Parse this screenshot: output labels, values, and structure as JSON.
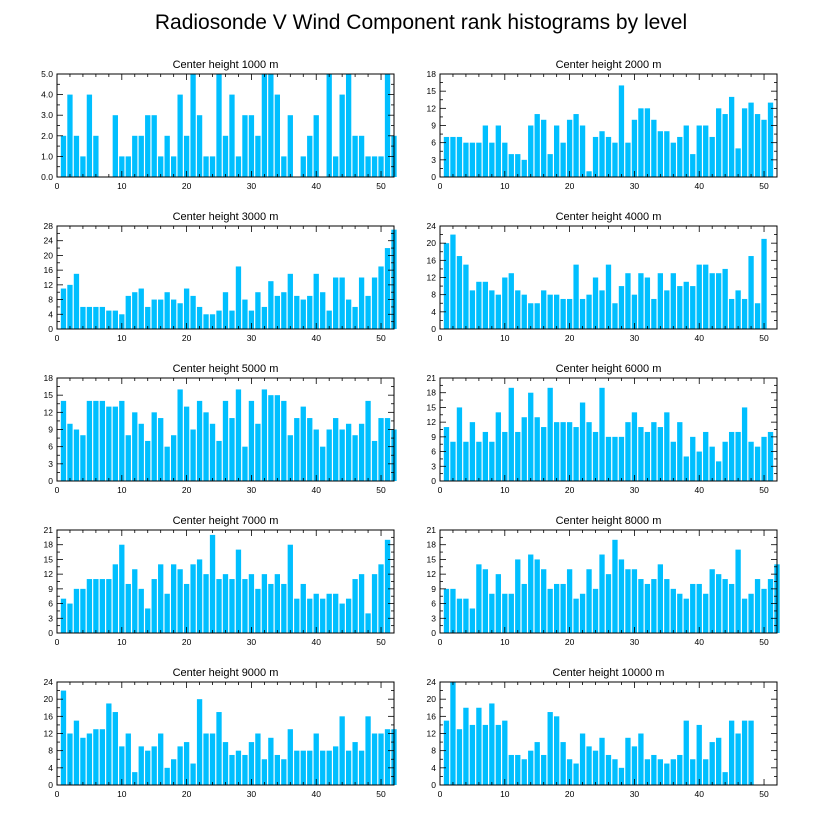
{
  "figure": {
    "title": "Radiosonde V Wind Component rank histograms by level"
  },
  "style": {
    "bar_color": "#00bfff",
    "axis_color": "#000000",
    "background": "#ffffff"
  },
  "chart_data": [
    {
      "type": "bar",
      "title": "Center height 1000 m",
      "xlim": [
        0,
        52
      ],
      "ylim": [
        0,
        5
      ],
      "x_ticks": [
        0,
        10,
        20,
        30,
        40,
        50
      ],
      "y_ticks": [
        0.0,
        1.0,
        2.0,
        3.0,
        4.0,
        5.0
      ],
      "y_tick_labels": [
        "0.0",
        "1.0",
        "2.0",
        "3.0",
        "4.0",
        "5.0"
      ],
      "values": [
        2,
        4,
        2,
        1,
        4,
        2,
        0,
        0,
        3,
        1,
        1,
        2,
        2,
        3,
        3,
        1,
        2,
        1,
        4,
        2,
        5,
        3,
        1,
        1,
        5,
        2,
        4,
        1,
        3,
        3,
        2,
        5,
        5,
        4,
        1,
        3,
        0,
        1,
        2,
        3,
        0,
        5,
        1,
        4,
        5,
        2,
        2,
        1,
        1,
        1,
        5,
        2
      ]
    },
    {
      "type": "bar",
      "title": "Center height 2000 m",
      "xlim": [
        0,
        52
      ],
      "ylim": [
        0,
        18
      ],
      "x_ticks": [
        0,
        10,
        20,
        30,
        40,
        50
      ],
      "y_ticks": [
        0,
        3,
        6,
        9,
        12,
        15,
        18
      ],
      "y_tick_labels": [
        "0",
        "3",
        "6",
        "9",
        "12",
        "15",
        "18"
      ],
      "values": [
        7,
        7,
        7,
        6,
        6,
        6,
        9,
        6,
        9,
        6,
        4,
        4,
        3,
        9,
        11,
        10,
        4,
        9,
        6,
        10,
        11,
        9,
        1,
        7,
        8,
        7,
        6,
        16,
        6,
        10,
        12,
        12,
        10,
        8,
        8,
        6,
        7,
        9,
        4,
        9,
        9,
        7,
        12,
        11,
        14,
        5,
        12,
        13,
        11,
        10,
        13
      ]
    },
    {
      "type": "bar",
      "title": "Center height 3000 m",
      "xlim": [
        0,
        52
      ],
      "ylim": [
        0,
        28
      ],
      "x_ticks": [
        0,
        10,
        20,
        30,
        40,
        50
      ],
      "y_ticks": [
        0,
        4,
        8,
        12,
        16,
        20,
        24,
        28
      ],
      "y_tick_labels": [
        "0",
        "4",
        "8",
        "12",
        "16",
        "20",
        "24",
        "28"
      ],
      "values": [
        11,
        12,
        15,
        6,
        6,
        6,
        6,
        5,
        5,
        4,
        9,
        10,
        11,
        6,
        8,
        8,
        10,
        8,
        7,
        11,
        9,
        6,
        4,
        4,
        5,
        10,
        5,
        17,
        8,
        5,
        10,
        6,
        13,
        9,
        10,
        15,
        9,
        8,
        9,
        15,
        10,
        5,
        14,
        14,
        8,
        6,
        14,
        9,
        14,
        17,
        22,
        27
      ]
    },
    {
      "type": "bar",
      "title": "Center height 4000 m",
      "xlim": [
        0,
        52
      ],
      "ylim": [
        0,
        24
      ],
      "x_ticks": [
        0,
        10,
        20,
        30,
        40,
        50
      ],
      "y_ticks": [
        0,
        4,
        8,
        12,
        16,
        20,
        24
      ],
      "y_tick_labels": [
        "0",
        "4",
        "8",
        "12",
        "16",
        "20",
        "24"
      ],
      "values": [
        20,
        22,
        17,
        15,
        9,
        11,
        11,
        9,
        8,
        12,
        13,
        9,
        8,
        6,
        6,
        9,
        8,
        8,
        7,
        7,
        15,
        7,
        8,
        12,
        9,
        15,
        6,
        10,
        13,
        8,
        13,
        12,
        7,
        13,
        9,
        13,
        10,
        11,
        10,
        15,
        15,
        13,
        13,
        14,
        7,
        9,
        7,
        17,
        6,
        21
      ]
    },
    {
      "type": "bar",
      "title": "Center height 5000 m",
      "xlim": [
        0,
        52
      ],
      "ylim": [
        0,
        18
      ],
      "x_ticks": [
        0,
        10,
        20,
        30,
        40,
        50
      ],
      "y_ticks": [
        0,
        3,
        6,
        9,
        12,
        15,
        18
      ],
      "y_tick_labels": [
        "0",
        "3",
        "6",
        "9",
        "12",
        "15",
        "18"
      ],
      "values": [
        14,
        10,
        9,
        8,
        14,
        14,
        14,
        13,
        13,
        14,
        8,
        12,
        10,
        7,
        12,
        11,
        6,
        8,
        16,
        13,
        9,
        14,
        12,
        10,
        7,
        14,
        11,
        16,
        6,
        14,
        10,
        16,
        15,
        15,
        14,
        8,
        11,
        13,
        11,
        9,
        6,
        9,
        11,
        9,
        10,
        8,
        10,
        14,
        7,
        11,
        11,
        9
      ]
    },
    {
      "type": "bar",
      "title": "Center height 6000 m",
      "xlim": [
        0,
        52
      ],
      "ylim": [
        0,
        21
      ],
      "x_ticks": [
        0,
        10,
        20,
        30,
        40,
        50
      ],
      "y_ticks": [
        0,
        3,
        6,
        9,
        12,
        15,
        18,
        21
      ],
      "y_tick_labels": [
        "0",
        "3",
        "6",
        "9",
        "12",
        "15",
        "18",
        "21"
      ],
      "values": [
        11,
        8,
        15,
        8,
        12,
        8,
        10,
        8,
        14,
        10,
        19,
        10,
        13,
        18,
        13,
        11,
        19,
        12,
        12,
        12,
        11,
        16,
        12,
        10,
        19,
        9,
        9,
        9,
        12,
        14,
        11,
        10,
        12,
        11,
        14,
        8,
        12,
        5,
        9,
        6,
        10,
        7,
        4,
        8,
        10,
        10,
        15,
        8,
        7,
        9,
        10
      ]
    },
    {
      "type": "bar",
      "title": "Center height 7000 m",
      "xlim": [
        0,
        52
      ],
      "ylim": [
        0,
        21
      ],
      "x_ticks": [
        0,
        10,
        20,
        30,
        40,
        50
      ],
      "y_ticks": [
        0,
        3,
        6,
        9,
        12,
        15,
        18,
        21
      ],
      "y_tick_labels": [
        "0",
        "3",
        "6",
        "9",
        "12",
        "15",
        "18",
        "21"
      ],
      "values": [
        7,
        6,
        9,
        9,
        11,
        11,
        11,
        11,
        14,
        18,
        10,
        13,
        9,
        5,
        11,
        14,
        8,
        14,
        13,
        10,
        14,
        15,
        12,
        20,
        11,
        12,
        11,
        17,
        11,
        12,
        9,
        12,
        10,
        12,
        10,
        18,
        7,
        10,
        7,
        8,
        7,
        8,
        8,
        6,
        7,
        11,
        12,
        4,
        12,
        14,
        19
      ]
    },
    {
      "type": "bar",
      "title": "Center height 8000 m",
      "xlim": [
        0,
        52
      ],
      "ylim": [
        0,
        21
      ],
      "x_ticks": [
        0,
        10,
        20,
        30,
        40,
        50
      ],
      "y_ticks": [
        0,
        3,
        6,
        9,
        12,
        15,
        18,
        21
      ],
      "y_tick_labels": [
        "0",
        "3",
        "6",
        "9",
        "12",
        "15",
        "18",
        "21"
      ],
      "values": [
        9,
        9,
        7,
        7,
        5,
        14,
        13,
        8,
        12,
        8,
        8,
        15,
        10,
        16,
        15,
        13,
        9,
        10,
        10,
        13,
        7,
        8,
        13,
        9,
        16,
        12,
        19,
        15,
        13,
        13,
        11,
        10,
        11,
        14,
        11,
        9,
        8,
        7,
        10,
        10,
        8,
        13,
        12,
        11,
        10,
        17,
        7,
        8,
        11,
        9,
        11,
        14
      ]
    },
    {
      "type": "bar",
      "title": "Center height 9000 m",
      "xlim": [
        0,
        52
      ],
      "ylim": [
        0,
        24
      ],
      "x_ticks": [
        0,
        10,
        20,
        30,
        40,
        50
      ],
      "y_ticks": [
        0,
        4,
        8,
        12,
        16,
        20,
        24
      ],
      "y_tick_labels": [
        "0",
        "4",
        "8",
        "12",
        "16",
        "20",
        "24"
      ],
      "values": [
        22,
        12,
        15,
        11,
        12,
        13,
        13,
        19,
        17,
        9,
        12,
        3,
        9,
        8,
        9,
        12,
        4,
        6,
        9,
        10,
        5,
        20,
        12,
        12,
        17,
        10,
        7,
        8,
        7,
        10,
        12,
        6,
        11,
        7,
        6,
        13,
        8,
        8,
        8,
        12,
        8,
        8,
        9,
        16,
        8,
        10,
        8,
        16,
        12,
        12,
        13,
        13
      ]
    },
    {
      "type": "bar",
      "title": "Center height 10000 m",
      "xlim": [
        0,
        52
      ],
      "ylim": [
        0,
        24
      ],
      "x_ticks": [
        0,
        10,
        20,
        30,
        40,
        50
      ],
      "y_ticks": [
        0,
        4,
        8,
        12,
        16,
        20,
        24
      ],
      "y_tick_labels": [
        "0",
        "4",
        "8",
        "12",
        "16",
        "20",
        "24"
      ],
      "values": [
        15,
        24,
        13,
        18,
        14,
        18,
        14,
        19,
        14,
        15,
        7,
        7,
        6,
        8,
        10,
        7,
        17,
        16,
        10,
        6,
        5,
        12,
        9,
        8,
        11,
        7,
        6,
        4,
        11,
        9,
        12,
        6,
        7,
        6,
        5,
        6,
        7,
        15,
        6,
        14,
        6,
        10,
        11,
        3,
        15,
        12,
        15,
        15
      ]
    }
  ]
}
